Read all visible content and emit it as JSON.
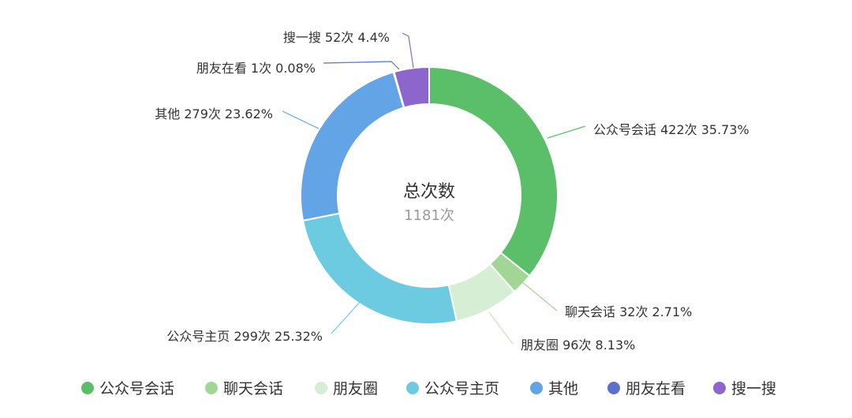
{
  "chart_data": {
    "type": "pie",
    "variant": "donut",
    "center": {
      "title": "总次数",
      "value": "1181次"
    },
    "total": 1181,
    "unit": "次",
    "legend_position": "bottom",
    "slices": [
      {
        "name": "公众号会话",
        "value": 422,
        "percent": "35.73%",
        "color": "#5bbf6a",
        "label": "公众号会话 422次 35.73%"
      },
      {
        "name": "聊天会话",
        "value": 32,
        "percent": "2.71%",
        "color": "#a2d696",
        "label": "聊天会话 32次 2.71%"
      },
      {
        "name": "朋友圈",
        "value": 96,
        "percent": "8.13%",
        "color": "#d6eed3",
        "label": "朋友圈 96次 8.13%"
      },
      {
        "name": "公众号主页",
        "value": 299,
        "percent": "25.32%",
        "color": "#6ccbe0",
        "label": "公众号主页 299次 25.32%"
      },
      {
        "name": "其他",
        "value": 279,
        "percent": "23.62%",
        "color": "#62a4e6",
        "label": "其他 279次 23.62%"
      },
      {
        "name": "朋友在看",
        "value": 1,
        "percent": "0.08%",
        "color": "#5b6fce",
        "label": "朋友在看 1次 0.08%"
      },
      {
        "name": "搜一搜",
        "value": 52,
        "percent": "4.4%",
        "color": "#8c66cc",
        "label": "搜一搜 52次 4.4%"
      }
    ]
  }
}
